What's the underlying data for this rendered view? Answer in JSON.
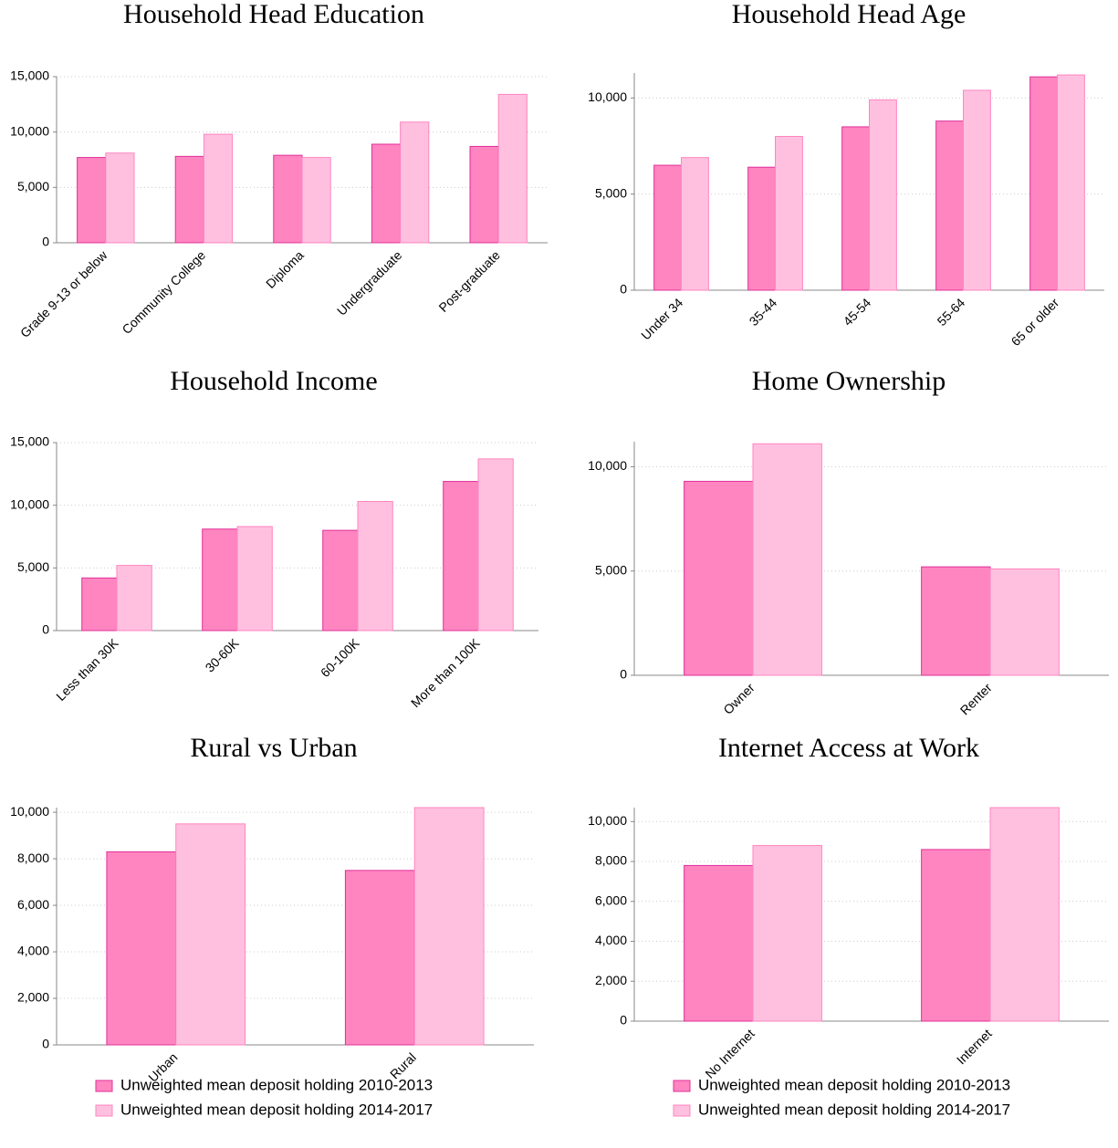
{
  "chart_data": [
    {
      "type": "bar",
      "title": "Household Head Education",
      "categories": [
        "Grade 9-13 or below",
        "Community College",
        "Diploma",
        "Undergraduate",
        "Post-graduate"
      ],
      "series": [
        {
          "color": "#ff85c0",
          "values": [
            7700,
            7800,
            7900,
            8900,
            8700
          ]
        },
        {
          "color": "#ffc0e0",
          "values": [
            8100,
            9800,
            7700,
            10900,
            13400
          ]
        }
      ],
      "ylim": [
        0,
        15000
      ],
      "yticks": [
        0,
        {
          "value": 5000,
          "label": "5,000"
        },
        {
          "value": 10000,
          "label": "10,000"
        },
        {
          "value": 15000,
          "label": "15,000"
        }
      ],
      "grid": true
    },
    {
      "type": "bar",
      "title": "Household Head Age",
      "categories": [
        "Under 34",
        "35-44",
        "45-54",
        "55-64",
        "65 or older"
      ],
      "series": [
        {
          "color": "#ff85c0",
          "values": [
            6500,
            6400,
            8500,
            8800,
            11100
          ]
        },
        {
          "color": "#ffc0e0",
          "values": [
            6900,
            8000,
            9900,
            10400,
            11200
          ]
        }
      ],
      "ylim": [
        0,
        11300
      ],
      "yticks": [
        0,
        {
          "value": 5000,
          "label": "5,000"
        },
        {
          "value": 10000,
          "label": "10,000"
        }
      ],
      "grid": true
    },
    {
      "type": "bar",
      "title": "Household Income",
      "categories": [
        "Less than 30K",
        "30-60K",
        "60-100K",
        "More than 100K"
      ],
      "series": [
        {
          "color": "#ff85c0",
          "values": [
            4200,
            8100,
            8000,
            11900
          ]
        },
        {
          "color": "#ffc0e0",
          "values": [
            5200,
            8300,
            10300,
            13700
          ]
        }
      ],
      "ylim": [
        0,
        15000
      ],
      "yticks": [
        0,
        {
          "value": 5000,
          "label": "5,000"
        },
        {
          "value": 10000,
          "label": "10,000"
        },
        {
          "value": 15000,
          "label": "15,000"
        }
      ],
      "grid": true
    },
    {
      "type": "bar",
      "title": "Home Ownership",
      "categories": [
        "Owner",
        "Renter"
      ],
      "series": [
        {
          "color": "#ff85c0",
          "values": [
            9300,
            5200
          ]
        },
        {
          "color": "#ffc0e0",
          "values": [
            11100,
            5100
          ]
        }
      ],
      "ylim": [
        0,
        11200
      ],
      "yticks": [
        0,
        {
          "value": 5000,
          "label": "5,000"
        },
        {
          "value": 10000,
          "label": "10,000"
        }
      ],
      "grid": true
    },
    {
      "type": "bar",
      "title": "Rural vs Urban",
      "categories": [
        "Urban",
        "Rural"
      ],
      "series": [
        {
          "name": "Unweighted mean deposit holding 2010-2013",
          "color": "#ff85c0",
          "values": [
            8300,
            7500
          ]
        },
        {
          "name": "Unweighted mean deposit holding 2014-2017",
          "color": "#ffc0e0",
          "values": [
            9500,
            10200
          ]
        }
      ],
      "ylim": [
        0,
        10200
      ],
      "yticks": [
        0,
        {
          "value": 2000,
          "label": "2,000"
        },
        {
          "value": 4000,
          "label": "4,000"
        },
        {
          "value": 6000,
          "label": "6,000"
        },
        {
          "value": 8000,
          "label": "8,000"
        },
        {
          "value": 10000,
          "label": "10,000"
        }
      ],
      "grid": true,
      "legend": "bottom"
    },
    {
      "type": "bar",
      "title": "Internet Access at Work",
      "categories": [
        "No Internet",
        "Internet"
      ],
      "series": [
        {
          "name": "Unweighted mean deposit holding 2010-2013",
          "color": "#ff85c0",
          "values": [
            7800,
            8600
          ]
        },
        {
          "name": "Unweighted mean deposit holding 2014-2017",
          "color": "#ffc0e0",
          "values": [
            8800,
            10700
          ]
        }
      ],
      "ylim": [
        0,
        10700
      ],
      "yticks": [
        0,
        {
          "value": 2000,
          "label": "2,000"
        },
        {
          "value": 4000,
          "label": "4,000"
        },
        {
          "value": 6000,
          "label": "6,000"
        },
        {
          "value": 8000,
          "label": "8,000"
        },
        {
          "value": 10000,
          "label": "10,000"
        }
      ],
      "grid": true,
      "legend": "bottom"
    }
  ]
}
